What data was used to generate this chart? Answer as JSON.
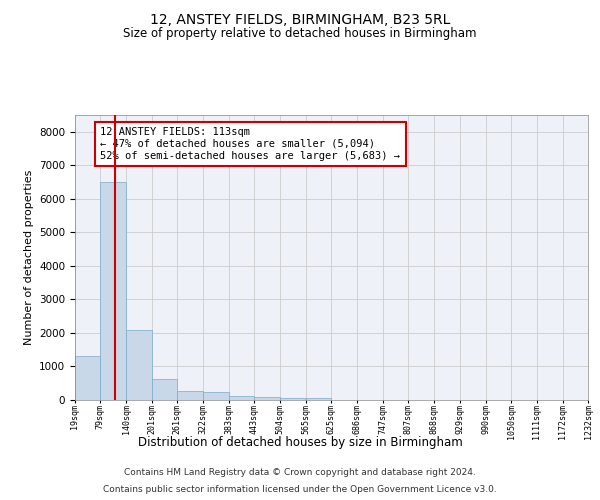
{
  "title": "12, ANSTEY FIELDS, BIRMINGHAM, B23 5RL",
  "subtitle": "Size of property relative to detached houses in Birmingham",
  "xlabel": "Distribution of detached houses by size in Birmingham",
  "ylabel": "Number of detached properties",
  "footer_line1": "Contains HM Land Registry data © Crown copyright and database right 2024.",
  "footer_line2": "Contains public sector information licensed under the Open Government Licence v3.0.",
  "bar_color": "#c8d8e8",
  "bar_edge_color": "#7aaacc",
  "grid_color": "#cccccc",
  "bg_color": "#eef2f8",
  "vline_color": "#cc0000",
  "vline_position": 113,
  "annotation_text": "12 ANSTEY FIELDS: 113sqm\n← 47% of detached houses are smaller (5,094)\n52% of semi-detached houses are larger (5,683) →",
  "annotation_box_color": "#ffffff",
  "annotation_border_color": "#cc0000",
  "bin_edges": [
    19,
    79,
    140,
    201,
    261,
    322,
    383,
    443,
    504,
    565,
    625,
    686,
    747,
    807,
    868,
    929,
    990,
    1050,
    1111,
    1172,
    1232
  ],
  "bin_labels": [
    "19sqm",
    "79sqm",
    "140sqm",
    "201sqm",
    "261sqm",
    "322sqm",
    "383sqm",
    "443sqm",
    "504sqm",
    "565sqm",
    "625sqm",
    "686sqm",
    "747sqm",
    "807sqm",
    "868sqm",
    "929sqm",
    "990sqm",
    "1050sqm",
    "1111sqm",
    "1172sqm",
    "1232sqm"
  ],
  "counts": [
    1300,
    6500,
    2080,
    620,
    270,
    250,
    110,
    100,
    60,
    60,
    0,
    0,
    0,
    0,
    0,
    0,
    0,
    0,
    0,
    0
  ],
  "ylim": [
    0,
    8500
  ],
  "yticks": [
    0,
    1000,
    2000,
    3000,
    4000,
    5000,
    6000,
    7000,
    8000
  ]
}
